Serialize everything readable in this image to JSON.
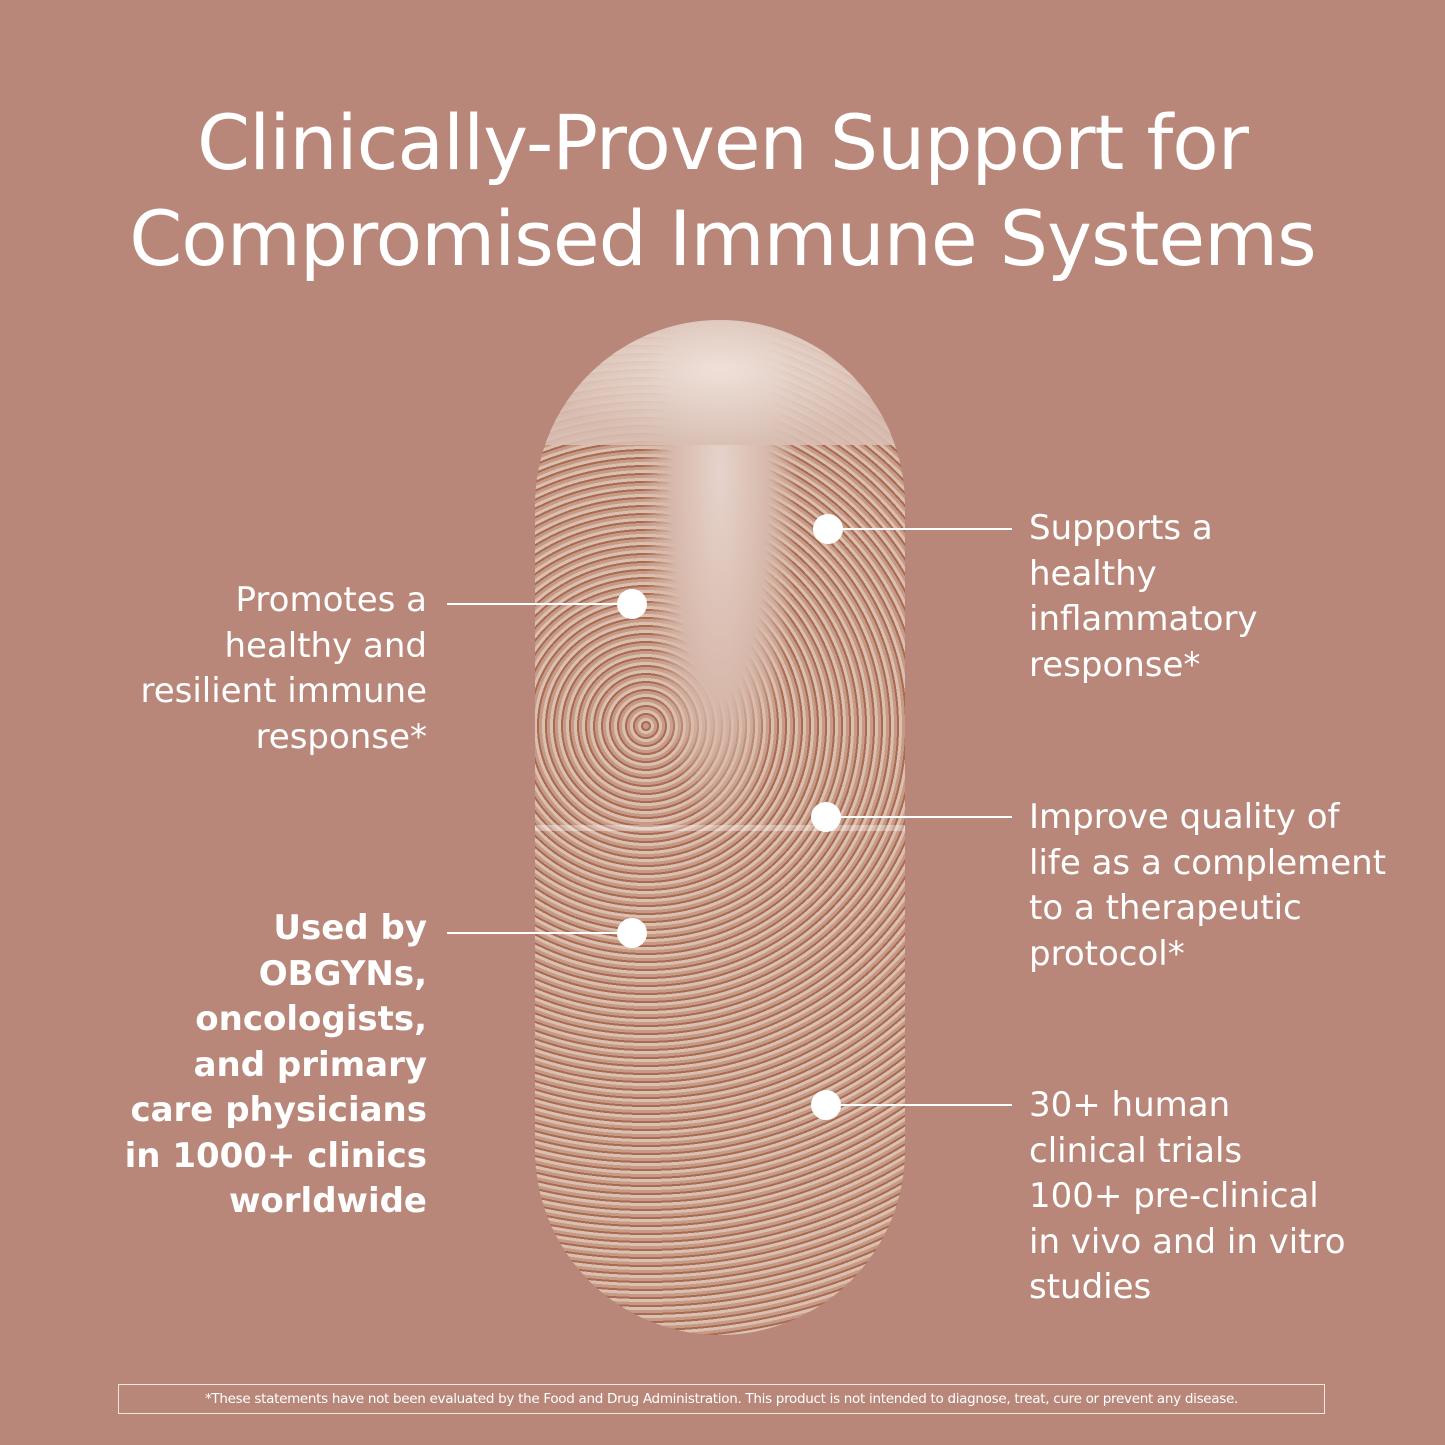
{
  "title": {
    "line1": "Clinically-Proven Support for",
    "line2": "Compromised Immune Systems"
  },
  "callouts": {
    "left_top": [
      "Promotes a",
      "healthy and",
      "resilient immune",
      "response*"
    ],
    "left_bottom": [
      "Used by",
      "OBGYNs,",
      "oncologists,",
      "and primary",
      "care physicians",
      "in 1000+ clinics",
      "worldwide"
    ],
    "right_top": [
      "Supports a",
      "healthy",
      "inflammatory",
      "response*"
    ],
    "right_middle": [
      "Improve quality of",
      "life as a complement",
      "to a therapeutic",
      "protocol*"
    ],
    "right_bottom": [
      "30+ human",
      "clinical trials",
      "100+ pre-clinical",
      "in vivo and in vitro",
      "studies"
    ]
  },
  "disclaimer": "*These statements have not been evaluated by the Food and Drug Administration. This product is not intended to diagnose, treat, cure or prevent any disease.",
  "colors": {
    "background": "#b8877a",
    "text": "#ffffff"
  }
}
